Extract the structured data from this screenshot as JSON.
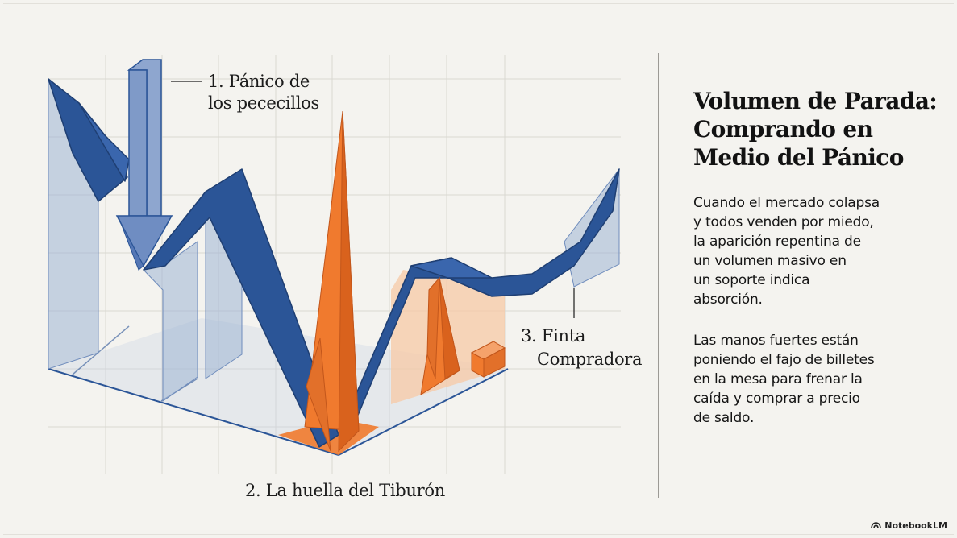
{
  "diagram": {
    "labels": {
      "panic": [
        "1. Pánico de",
        "los pececillos"
      ],
      "shark": "2. La huella del Tiburón",
      "feint": [
        "3. Finta",
        "Compradora"
      ]
    },
    "colors": {
      "price_line": "#2b5597",
      "price_shadow": "#9fb4d3",
      "volume_spike": "#f07a2e",
      "volume_glow": "#f7c9a6",
      "grid": "#dad8d2"
    }
  },
  "panel": {
    "title": [
      "Volumen de Parada:",
      "Comprando en",
      "Medio del Pánico"
    ],
    "paragraph1": [
      "Cuando el mercado colapsa",
      "y todos venden por miedo,",
      "la aparición repentina de",
      "un volumen masivo en",
      "un soporte indica",
      "absorción."
    ],
    "paragraph2": [
      "Las manos fuertes están",
      "poniendo el fajo de billetes",
      "en la mesa para frenar la",
      "caída y comprar a precio",
      "de saldo."
    ]
  },
  "brand": {
    "name": "NotebookLM",
    "icon": "notebooklm-logo-icon"
  }
}
